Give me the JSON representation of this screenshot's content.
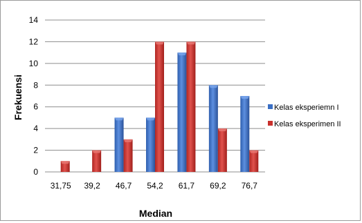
{
  "chart_data": {
    "type": "bar",
    "categories": [
      "31,75",
      "39,2",
      "46,7",
      "54,2",
      "61,7",
      "69,2",
      "76,7"
    ],
    "series": [
      {
        "name": "Kelas eksperiemn I",
        "values": [
          0,
          0,
          5,
          5,
          11,
          8,
          7
        ],
        "color": "#3a6fc4"
      },
      {
        "name": "Kelas eksperimen II",
        "values": [
          1,
          2,
          3,
          12,
          12,
          4,
          2
        ],
        "color": "#c9302c"
      }
    ],
    "xlabel": "Median",
    "ylabel": "Frekuensi",
    "ylim": [
      0,
      14
    ],
    "yticks": [
      0,
      2,
      4,
      6,
      8,
      10,
      12,
      14
    ],
    "grid": true,
    "legend": "right"
  }
}
